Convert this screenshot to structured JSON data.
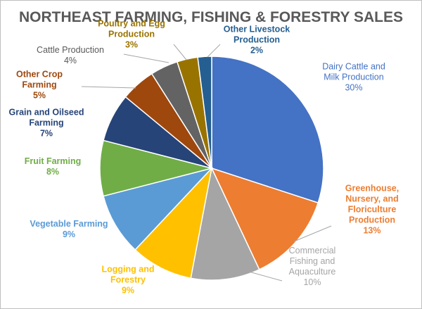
{
  "chart_data": {
    "type": "pie",
    "title": "NORTHEAST FARMING, FISHING & FORESTRY SALES",
    "slices": [
      {
        "name": "Dairy Cattle and Milk Production",
        "lines": [
          "Dairy Cattle and",
          "Milk Production"
        ],
        "value": 30,
        "label": "30%",
        "color": "#4472C4",
        "bold": false
      },
      {
        "name": "Greenhouse, Nursery, and Floriculture Production",
        "lines": [
          "Greenhouse,",
          "Nursery, and",
          "Floriculture",
          "Production"
        ],
        "value": 13,
        "label": "13%",
        "color": "#ED7D31",
        "bold": true
      },
      {
        "name": "Commercial Fishing and Aquaculture",
        "lines": [
          "Commercial",
          "Fishing and",
          "Aquaculture"
        ],
        "value": 10,
        "label": "10%",
        "color": "#A5A5A5",
        "bold": false
      },
      {
        "name": "Logging and Forestry",
        "lines": [
          "Logging and",
          "Forestry"
        ],
        "value": 9,
        "label": "9%",
        "color": "#FFC000",
        "bold": true
      },
      {
        "name": "Vegetable Farming",
        "lines": [
          "Vegetable Farming"
        ],
        "value": 9,
        "label": "9%",
        "color": "#5B9BD5",
        "bold": true
      },
      {
        "name": "Fruit Farming",
        "lines": [
          "Fruit Farming"
        ],
        "value": 8,
        "label": "8%",
        "color": "#70AD47",
        "bold": true
      },
      {
        "name": "Grain and Oilseed Farming",
        "lines": [
          "Grain and Oilseed",
          "Farming"
        ],
        "value": 7,
        "label": "7%",
        "color": "#264478",
        "bold": true
      },
      {
        "name": "Other Crop Farming",
        "lines": [
          "Other Crop",
          "Farming"
        ],
        "value": 5,
        "label": "5%",
        "color": "#9E480E",
        "bold": true
      },
      {
        "name": "Cattle Production",
        "lines": [
          "Cattle Production"
        ],
        "value": 4,
        "label": "4%",
        "color": "#636363",
        "bold": false
      },
      {
        "name": "Poultry and Egg Production",
        "lines": [
          "Poultry and Egg",
          "Production"
        ],
        "value": 3,
        "label": "3%",
        "color": "#997300",
        "bold": true
      },
      {
        "name": "Other Livestock Production",
        "lines": [
          "Other Livestock",
          "Production"
        ],
        "value": 2,
        "label": "2%",
        "color": "#255E91",
        "bold": true
      }
    ],
    "legend": "none",
    "data_labels": "outside with leader lines"
  }
}
